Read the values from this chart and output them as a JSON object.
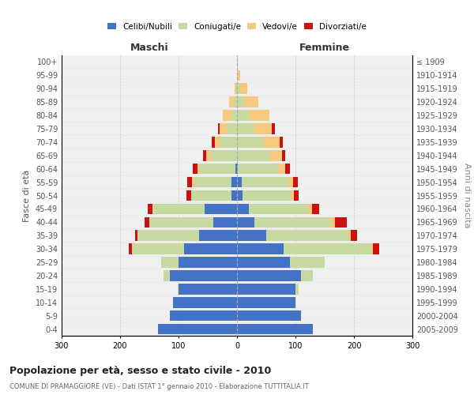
{
  "age_groups": [
    "0-4",
    "5-9",
    "10-14",
    "15-19",
    "20-24",
    "25-29",
    "30-34",
    "35-39",
    "40-44",
    "45-49",
    "50-54",
    "55-59",
    "60-64",
    "65-69",
    "70-74",
    "75-79",
    "80-84",
    "85-89",
    "90-94",
    "95-99",
    "100+"
  ],
  "birth_years": [
    "2005-2009",
    "2000-2004",
    "1995-1999",
    "1990-1994",
    "1985-1989",
    "1980-1984",
    "1975-1979",
    "1970-1974",
    "1965-1969",
    "1960-1964",
    "1955-1959",
    "1950-1954",
    "1945-1949",
    "1940-1944",
    "1935-1939",
    "1930-1934",
    "1925-1929",
    "1920-1924",
    "1915-1919",
    "1910-1914",
    "≤ 1909"
  ],
  "maschi_celibi": [
    135,
    115,
    110,
    100,
    115,
    100,
    90,
    65,
    40,
    55,
    10,
    10,
    3,
    0,
    0,
    0,
    0,
    0,
    0,
    0,
    0
  ],
  "maschi_coniugati": [
    0,
    0,
    0,
    2,
    10,
    30,
    90,
    105,
    110,
    90,
    68,
    65,
    60,
    45,
    28,
    18,
    10,
    5,
    2,
    0,
    0
  ],
  "maschi_vedovi": [
    0,
    0,
    0,
    0,
    0,
    0,
    0,
    0,
    0,
    0,
    0,
    2,
    5,
    8,
    10,
    12,
    15,
    8,
    2,
    0,
    0
  ],
  "maschi_divorziati": [
    0,
    0,
    0,
    0,
    0,
    0,
    5,
    5,
    8,
    8,
    8,
    8,
    8,
    5,
    5,
    2,
    0,
    0,
    0,
    0,
    0
  ],
  "femmine_nubili": [
    130,
    110,
    100,
    100,
    110,
    90,
    80,
    50,
    30,
    20,
    10,
    8,
    2,
    0,
    0,
    0,
    0,
    0,
    0,
    0,
    0
  ],
  "femmine_coniugate": [
    0,
    0,
    0,
    5,
    20,
    60,
    150,
    140,
    130,
    100,
    82,
    80,
    68,
    55,
    45,
    30,
    20,
    12,
    5,
    2,
    0
  ],
  "femmine_vedove": [
    0,
    0,
    0,
    0,
    0,
    0,
    3,
    5,
    8,
    8,
    5,
    8,
    12,
    22,
    28,
    30,
    35,
    25,
    12,
    3,
    2
  ],
  "femmine_divorziate": [
    0,
    0,
    0,
    0,
    0,
    0,
    10,
    10,
    20,
    12,
    8,
    8,
    8,
    5,
    5,
    5,
    0,
    0,
    0,
    0,
    0
  ],
  "color_celibi": "#4472c4",
  "color_coniugati": "#c5d9a0",
  "color_vedovi": "#f5c97f",
  "color_divorziati": "#cc1111",
  "xlim": 300,
  "title": "Popolazione per età, sesso e stato civile - 2010",
  "subtitle": "COMUNE DI PRAMAGGIORE (VE) - Dati ISTAT 1° gennaio 2010 - Elaborazione TUTTITALIA.IT",
  "legend_labels": [
    "Celibi/Nubili",
    "Coniugati/e",
    "Vedovi/e",
    "Divorziati/e"
  ],
  "label_maschi": "Maschi",
  "label_femmine": "Femmine",
  "ylabel_left": "Fasce di età",
  "ylabel_right": "Anni di nascita",
  "bg_color": "#f0f0f0",
  "grid_color": "#cccccc"
}
